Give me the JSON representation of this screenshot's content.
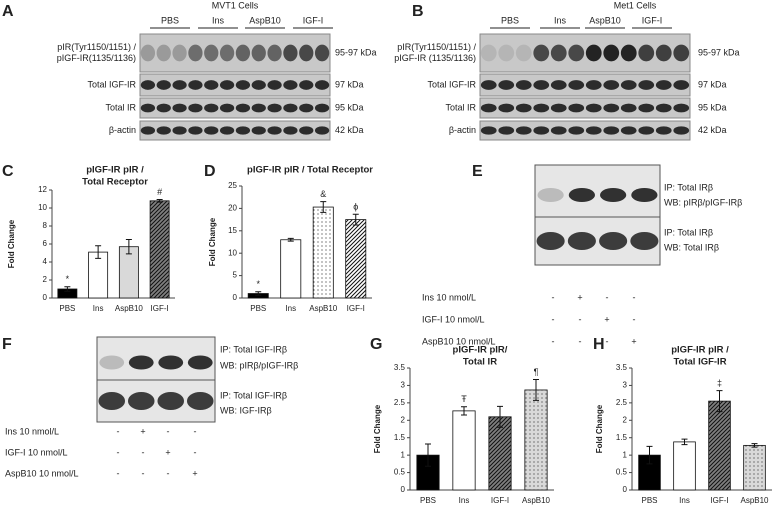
{
  "chart_data": [
    {
      "type": "bar",
      "panel": "C",
      "title": [
        "pIGF-IR pIR /",
        "Total Receptor"
      ],
      "y_label": "Fold Change",
      "categories": [
        "PBS",
        "Ins",
        "AspB10",
        "IGF-I"
      ],
      "values": [
        1,
        5.1,
        5.7,
        10.8
      ],
      "errors": [
        0.25,
        0.7,
        0.8,
        0.15
      ],
      "annotations": [
        "*",
        null,
        null,
        "#"
      ],
      "colors": [
        "#000000",
        "#ffffff",
        "#d9d9d9",
        "#7f7f7f"
      ],
      "fill_styles": [
        "solid",
        "solid",
        "solid",
        "hatch"
      ],
      "ylim": [
        0,
        12
      ],
      "yticks": [
        0,
        2,
        4,
        6,
        8,
        10,
        12
      ]
    },
    {
      "type": "bar",
      "panel": "D",
      "title": [
        "pIGF-IR pIR / Total  Receptor"
      ],
      "y_label": "Fold Change",
      "categories": [
        "PBS",
        "Ins",
        "AspB10",
        "IGF-I"
      ],
      "values": [
        1,
        13,
        20.3,
        17.5
      ],
      "errors": [
        0.4,
        0.3,
        1.2,
        1.2
      ],
      "annotations": [
        "*",
        null,
        "&",
        "ϕ"
      ],
      "colors": [
        "#000000",
        "#ffffff",
        "#ffffff",
        "#ffffff"
      ],
      "fill_styles": [
        "solid",
        "solid",
        "dots",
        "hatch"
      ],
      "ylim": [
        0,
        25
      ],
      "yticks": [
        0,
        5,
        10,
        15,
        20,
        25
      ]
    },
    {
      "type": "bar",
      "panel": "G",
      "title": [
        "pIGF-IR pIR/",
        "Total  IR"
      ],
      "y_label": "Fold Change",
      "categories": [
        "PBS",
        "Ins",
        "IGF-I",
        "AspB10"
      ],
      "values": [
        1,
        2.27,
        2.1,
        2.87
      ],
      "errors": [
        0.32,
        0.12,
        0.3,
        0.3
      ],
      "annotations": [
        null,
        "Ŧ",
        null,
        "¶"
      ],
      "colors": [
        "#000000",
        "#ffffff",
        "#7f7f7f",
        "#d9d9d9"
      ],
      "fill_styles": [
        "solid",
        "solid",
        "hatch",
        "dots"
      ],
      "ylim": [
        0,
        3.5
      ],
      "yticks": [
        0,
        0.5,
        1,
        1.5,
        2,
        2.5,
        3,
        3.5
      ]
    },
    {
      "type": "bar",
      "panel": "H",
      "title": [
        "pIGF-IR pIR /",
        "Total  IGF-IR"
      ],
      "y_label": "Fold Change",
      "categories": [
        "PBS",
        "Ins",
        "IGF-I",
        "AspB10"
      ],
      "values": [
        1,
        1.38,
        2.55,
        1.28
      ],
      "errors": [
        0.25,
        0.08,
        0.3,
        0.05
      ],
      "annotations": [
        null,
        null,
        "‡",
        null
      ],
      "colors": [
        "#000000",
        "#ffffff",
        "#7f7f7f",
        "#d9d9d9"
      ],
      "fill_styles": [
        "solid",
        "solid",
        "hatch",
        "dots"
      ],
      "ylim": [
        0,
        3.5
      ],
      "yticks": [
        0,
        0.5,
        1,
        1.5,
        2,
        2.5,
        3,
        3.5
      ]
    }
  ],
  "blots": [
    {
      "panel": "A",
      "cell_line": "MVT1 Cells",
      "groups": [
        "PBS",
        "Ins",
        "AspB10",
        "IGF-I"
      ],
      "rows": [
        {
          "label": [
            "pIR(Tyr1150/1151) /",
            "pIGF-IR(1135/1136)"
          ],
          "size": "95-97 kDa"
        },
        {
          "label": [
            "Total IGF-IR"
          ],
          "size": "97 kDa"
        },
        {
          "label": [
            "Total IR"
          ],
          "size": "95 kDa"
        },
        {
          "label": [
            "β-actin"
          ],
          "size": "42 kDa"
        }
      ]
    },
    {
      "panel": "B",
      "cell_line": "Met1 Cells",
      "groups": [
        "PBS",
        "Ins",
        "AspB10",
        "IGF-I"
      ],
      "rows": [
        {
          "label": [
            "pIR(Tyr1150/1151) /",
            "pIGF-IR (1135/1136)"
          ],
          "size": "95-97 kDa"
        },
        {
          "label": [
            "Total IGF-IR"
          ],
          "size": "97 kDa"
        },
        {
          "label": [
            "Total IR"
          ],
          "size": "95 kDa"
        },
        {
          "label": [
            "β-actin"
          ],
          "size": "42 kDa"
        }
      ]
    }
  ],
  "ip_blots": [
    {
      "panel": "E",
      "labels": [
        "IP: Total IRβ",
        "WB: pIRβ/pIGF-IRβ",
        "IP: Total IRβ",
        "WB: Total IRβ"
      ],
      "treatments": [
        {
          "name": "Ins 10 nmol/L",
          "signs": [
            "-",
            "+",
            "-",
            "-"
          ]
        },
        {
          "name": "IGF-I 10 nmol/L",
          "signs": [
            "-",
            "-",
            "+",
            "-"
          ]
        },
        {
          "name": "AspB10 10 nmol/L",
          "signs": [
            "-",
            "-",
            "-",
            "+"
          ]
        }
      ]
    },
    {
      "panel": "F",
      "labels": [
        "IP: Total IGF-IRβ",
        "WB: pIRβ/pIGF-IRβ",
        "IP: Total IGF-IRβ",
        "WB: IGF-IRβ"
      ],
      "treatments": [
        {
          "name": "Ins 10 nmol/L",
          "signs": [
            "-",
            "+",
            "-",
            "-"
          ]
        },
        {
          "name": "IGF-I 10 nmol/L",
          "signs": [
            "-",
            "-",
            "+",
            "-"
          ]
        },
        {
          "name": "AspB10 10 nmol/L",
          "signs": [
            "-",
            "-",
            "-",
            "+"
          ]
        }
      ]
    }
  ]
}
